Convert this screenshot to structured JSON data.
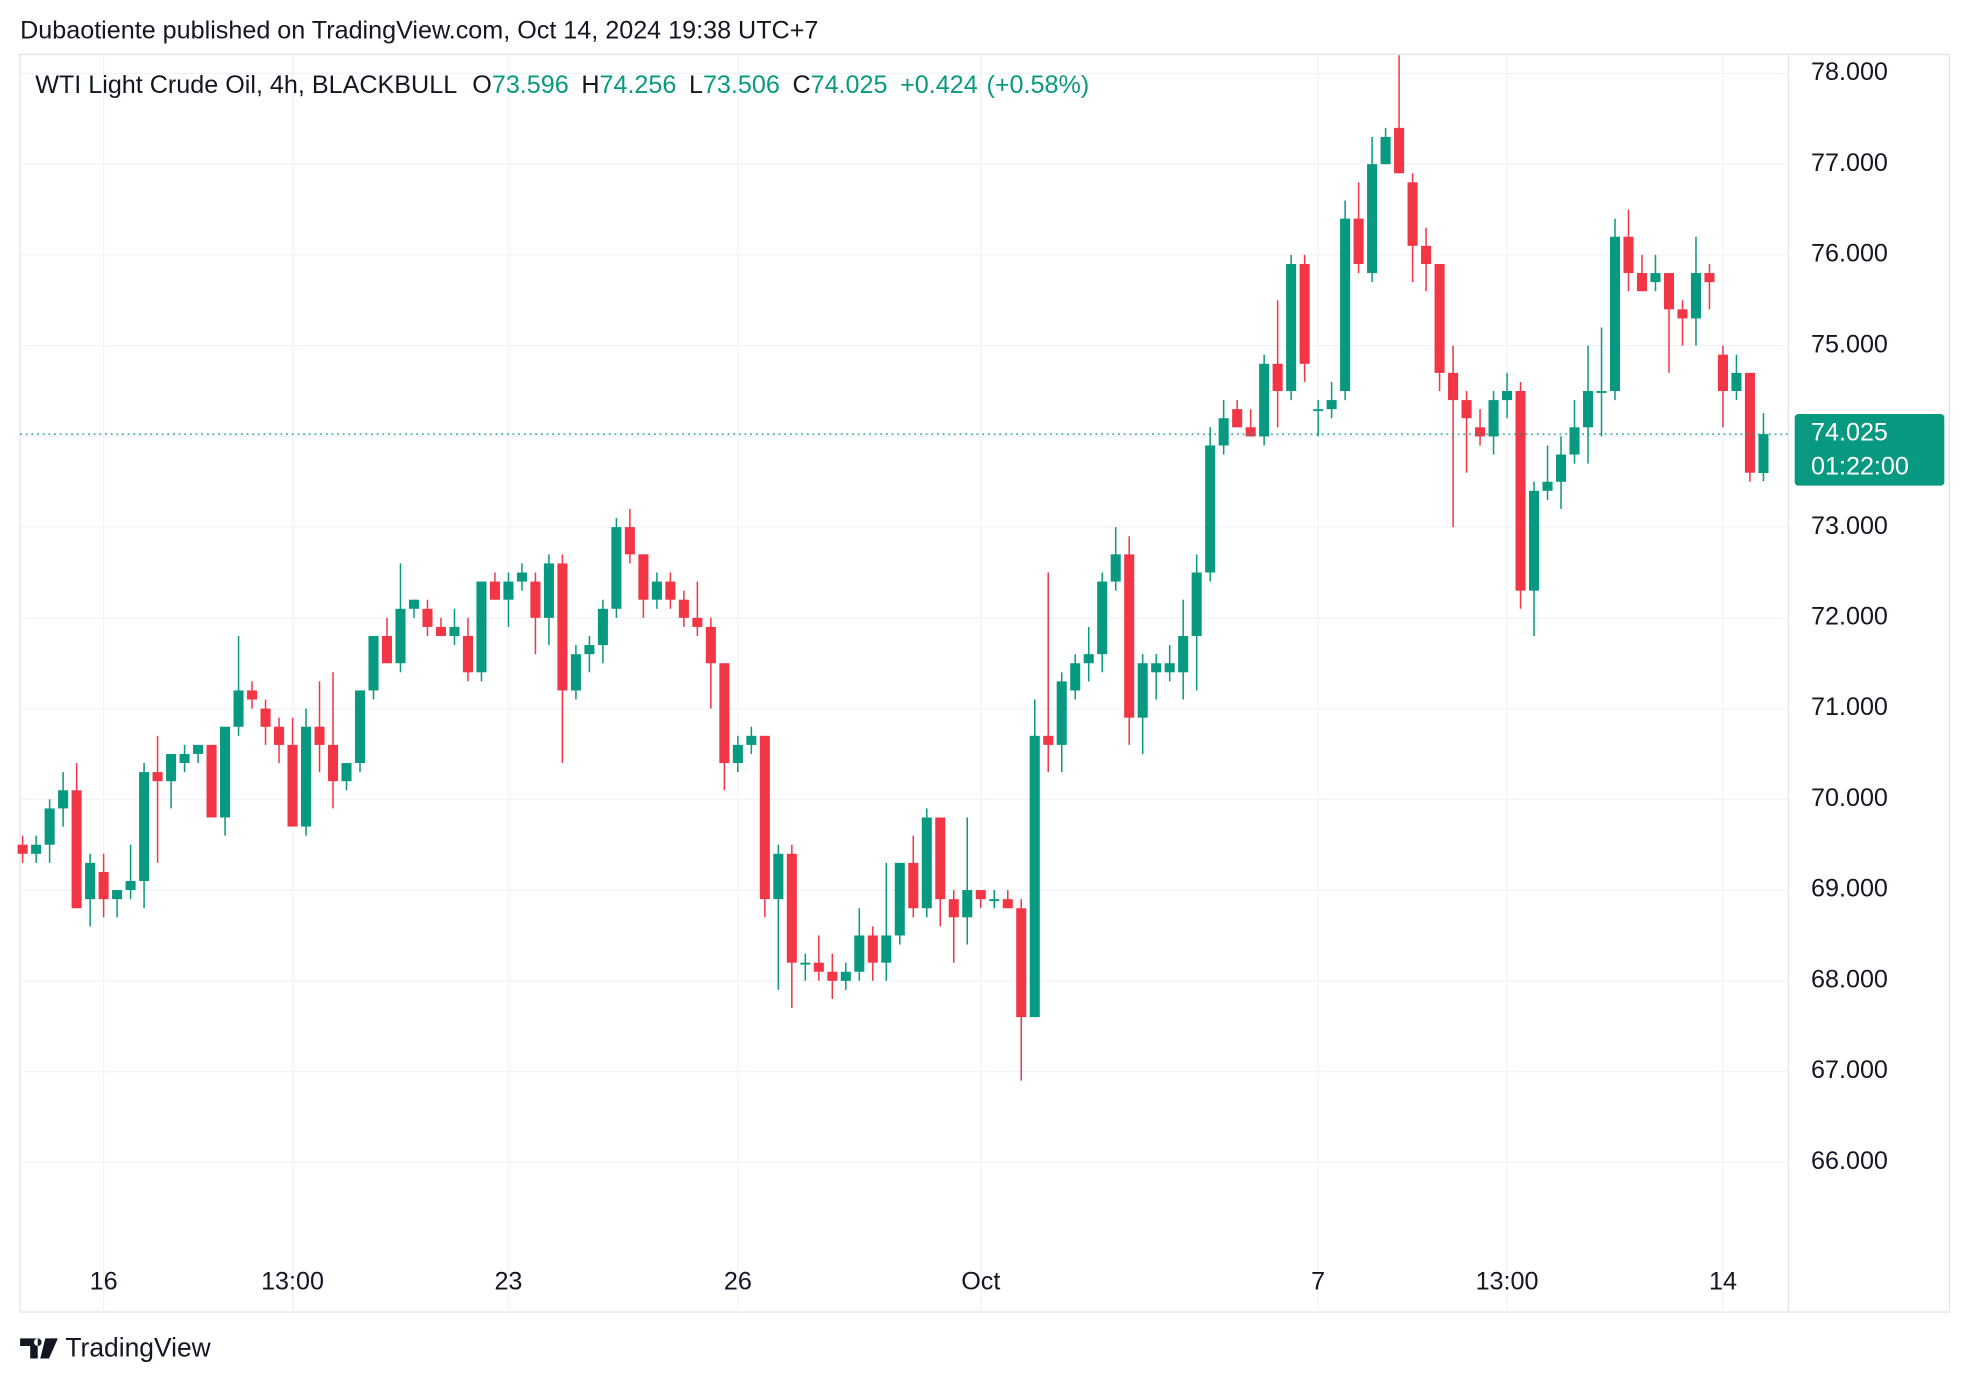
{
  "header": {
    "attribution": "Dubaotiente published on TradingView.com, Oct 14, 2024 19:38 UTC+7"
  },
  "chart_data": {
    "type": "candlestick",
    "title": "WTI Light Crude Oil, 4h, BLACKBULL",
    "ohlc_labels": [
      "O",
      "H",
      "L",
      "C"
    ],
    "change": {
      "value": 0.424,
      "label": "+0.424"
    },
    "change_pct": {
      "value": 0.58,
      "label": "(+0.58%)"
    },
    "countdown": "01:22:00",
    "up_color": "#089981",
    "down_color": "#f23645",
    "grid": true,
    "ylim": [
      64.35,
      78.21
    ],
    "yticks": [
      {
        "value": 66,
        "label": "66.000"
      },
      {
        "value": 67,
        "label": "67.000"
      },
      {
        "value": 68,
        "label": "68.000"
      },
      {
        "value": 69,
        "label": "69.000"
      },
      {
        "value": 70,
        "label": "70.000"
      },
      {
        "value": 71,
        "label": "71.000"
      },
      {
        "value": 72,
        "label": "72.000"
      },
      {
        "value": 73,
        "label": "73.000"
      },
      {
        "value": 74,
        "label": "74.000"
      },
      {
        "value": 75,
        "label": "75.000"
      },
      {
        "value": 76,
        "label": "76.000"
      },
      {
        "value": 77,
        "label": "77.000"
      },
      {
        "value": 78,
        "label": "78.000"
      }
    ],
    "categories": [
      null,
      null,
      null,
      null,
      null,
      null,
      "16",
      null,
      null,
      null,
      null,
      null,
      null,
      null,
      null,
      null,
      null,
      null,
      null,
      null,
      "13:00",
      null,
      null,
      null,
      null,
      null,
      null,
      null,
      null,
      null,
      null,
      null,
      null,
      null,
      null,
      null,
      "23",
      null,
      null,
      null,
      null,
      null,
      null,
      null,
      null,
      null,
      null,
      null,
      null,
      null,
      null,
      null,
      null,
      "26",
      null,
      null,
      null,
      null,
      null,
      null,
      null,
      null,
      null,
      null,
      null,
      null,
      null,
      null,
      null,
      null,
      null,
      "Oct",
      null,
      null,
      null,
      null,
      null,
      null,
      null,
      null,
      null,
      null,
      null,
      null,
      null,
      null,
      null,
      null,
      null,
      null,
      null,
      null,
      null,
      null,
      null,
      null,
      "7",
      null,
      null,
      null,
      null,
      null,
      null,
      null,
      null,
      null,
      null,
      null,
      null,
      null,
      "13:00",
      null,
      null,
      null,
      null,
      null,
      null,
      null,
      null,
      null,
      null,
      null,
      null,
      null,
      null,
      null,
      "14",
      null,
      null,
      null
    ],
    "open": [
      69.5,
      69.4,
      69.5,
      69.9,
      70.1,
      68.9,
      69.2,
      68.9,
      69.0,
      69.1,
      70.3,
      70.2,
      70.4,
      70.5,
      70.6,
      69.8,
      70.8,
      71.2,
      71.0,
      70.8,
      70.6,
      69.7,
      70.8,
      70.6,
      70.2,
      70.4,
      71.2,
      71.8,
      71.5,
      72.1,
      72.1,
      71.9,
      71.8,
      71.8,
      71.4,
      72.4,
      72.2,
      72.4,
      72.4,
      72.0,
      72.6,
      71.2,
      71.6,
      71.7,
      72.1,
      73.0,
      72.7,
      72.2,
      72.4,
      72.2,
      72.0,
      71.9,
      71.5,
      70.4,
      70.6,
      70.7,
      68.9,
      69.4,
      68.2,
      68.2,
      68.1,
      68.0,
      68.1,
      68.5,
      68.2,
      68.5,
      69.3,
      68.8,
      69.8,
      68.9,
      68.7,
      69.0,
      68.9,
      68.9,
      68.8,
      67.6,
      70.7,
      70.6,
      71.2,
      71.5,
      71.6,
      72.4,
      72.7,
      70.9,
      71.4,
      71.4,
      71.4,
      71.8,
      72.5,
      73.9,
      74.3,
      74.1,
      74.0,
      74.8,
      74.5,
      75.9,
      74.3,
      74.3,
      74.5,
      76.4,
      75.8,
      77.0,
      77.4,
      76.8,
      76.1,
      75.9,
      74.7,
      74.4,
      74.1,
      74.0,
      74.4,
      74.5,
      72.3,
      73.4,
      73.5,
      73.8,
      74.1,
      74.5,
      74.5,
      76.2,
      75.8,
      75.7,
      75.8,
      75.4,
      75.3,
      75.8,
      74.9,
      74.5,
      74.7,
      73.596
    ],
    "high": [
      69.6,
      69.6,
      70.0,
      70.3,
      70.4,
      69.4,
      69.4,
      69.0,
      69.5,
      70.4,
      70.7,
      70.5,
      70.6,
      70.6,
      70.6,
      70.8,
      71.8,
      71.3,
      71.1,
      70.9,
      70.9,
      71.0,
      71.3,
      71.4,
      70.4,
      71.2,
      71.8,
      72.0,
      72.6,
      72.2,
      72.2,
      72.0,
      72.1,
      72.0,
      72.4,
      72.5,
      72.5,
      72.6,
      72.5,
      72.7,
      72.7,
      71.7,
      71.8,
      72.2,
      73.1,
      73.2,
      72.7,
      72.5,
      72.5,
      72.3,
      72.4,
      72.0,
      71.5,
      70.7,
      70.8,
      70.7,
      69.5,
      69.5,
      68.3,
      68.5,
      68.3,
      68.2,
      68.8,
      68.6,
      69.3,
      69.3,
      69.6,
      69.9,
      69.8,
      69.0,
      69.8,
      69.0,
      69.0,
      69.0,
      68.9,
      71.1,
      72.5,
      71.4,
      71.6,
      71.9,
      72.5,
      73.0,
      72.9,
      71.6,
      71.6,
      71.7,
      72.2,
      72.7,
      74.1,
      74.4,
      74.4,
      74.3,
      74.9,
      75.5,
      76.0,
      76.0,
      74.4,
      74.6,
      76.6,
      76.8,
      77.3,
      77.4,
      78.2,
      76.9,
      76.3,
      75.9,
      75.0,
      74.5,
      74.3,
      74.5,
      74.7,
      74.6,
      73.5,
      73.9,
      74.0,
      74.4,
      75.0,
      75.2,
      76.4,
      76.5,
      76.0,
      76.0,
      75.8,
      75.5,
      76.2,
      75.9,
      75.0,
      74.9,
      74.7,
      74.256
    ],
    "low": [
      69.3,
      69.3,
      69.3,
      69.7,
      68.8,
      68.6,
      68.7,
      68.7,
      68.9,
      68.8,
      69.3,
      69.9,
      70.3,
      70.4,
      69.8,
      69.6,
      70.7,
      71.0,
      70.6,
      70.4,
      69.7,
      69.6,
      70.3,
      69.9,
      70.1,
      70.3,
      71.1,
      71.5,
      71.4,
      72.0,
      71.8,
      71.8,
      71.7,
      71.3,
      71.3,
      72.2,
      71.9,
      72.3,
      71.6,
      71.7,
      70.4,
      71.1,
      71.4,
      71.5,
      72.0,
      72.6,
      72.0,
      72.1,
      72.1,
      71.9,
      71.8,
      71.0,
      70.1,
      70.3,
      70.5,
      68.7,
      67.9,
      67.7,
      68.0,
      68.0,
      67.8,
      67.9,
      68.0,
      68.0,
      68.0,
      68.4,
      68.7,
      68.7,
      68.6,
      68.2,
      68.4,
      68.8,
      68.8,
      68.8,
      66.9,
      67.6,
      70.3,
      70.3,
      71.1,
      71.3,
      71.4,
      72.3,
      70.6,
      70.5,
      71.1,
      71.3,
      71.1,
      71.2,
      72.4,
      73.8,
      74.1,
      74.0,
      73.9,
      74.1,
      74.4,
      74.6,
      74.0,
      74.2,
      74.4,
      75.8,
      75.7,
      77.0,
      76.9,
      75.7,
      75.6,
      74.5,
      73.0,
      73.6,
      73.9,
      73.8,
      74.2,
      72.1,
      71.8,
      73.3,
      73.2,
      73.7,
      73.7,
      74.0,
      74.4,
      75.6,
      75.6,
      75.6,
      74.7,
      75.0,
      75.0,
      75.4,
      74.1,
      74.4,
      73.5,
      73.506
    ],
    "close": [
      69.4,
      69.5,
      69.9,
      70.1,
      68.8,
      69.3,
      68.9,
      69.0,
      69.1,
      70.3,
      70.2,
      70.5,
      70.5,
      70.6,
      69.8,
      70.8,
      71.2,
      71.1,
      70.8,
      70.6,
      69.7,
      70.8,
      70.6,
      70.2,
      70.4,
      71.2,
      71.8,
      71.5,
      72.1,
      72.2,
      71.9,
      71.8,
      71.9,
      71.4,
      72.4,
      72.2,
      72.4,
      72.5,
      72.0,
      72.6,
      71.2,
      71.6,
      71.7,
      72.1,
      73.0,
      72.7,
      72.2,
      72.4,
      72.2,
      72.0,
      71.9,
      71.5,
      70.4,
      70.6,
      70.7,
      68.9,
      69.4,
      68.2,
      68.2,
      68.1,
      68.0,
      68.1,
      68.5,
      68.2,
      68.5,
      69.3,
      68.8,
      69.8,
      68.9,
      68.7,
      69.0,
      68.9,
      68.9,
      68.8,
      67.6,
      70.7,
      70.6,
      71.3,
      71.5,
      71.6,
      72.4,
      72.7,
      70.9,
      71.5,
      71.5,
      71.5,
      71.8,
      72.5,
      73.9,
      74.2,
      74.1,
      74.0,
      74.8,
      74.5,
      75.9,
      74.8,
      74.3,
      74.4,
      76.4,
      75.9,
      77.0,
      77.3,
      76.9,
      76.1,
      75.9,
      74.7,
      74.4,
      74.2,
      74.0,
      74.4,
      74.5,
      72.3,
      73.4,
      73.5,
      73.8,
      74.1,
      74.5,
      74.5,
      76.2,
      75.8,
      75.6,
      75.8,
      75.4,
      75.3,
      75.8,
      75.7,
      74.5,
      74.7,
      73.6,
      74.025
    ]
  },
  "footer": {
    "brand": "TradingView"
  }
}
